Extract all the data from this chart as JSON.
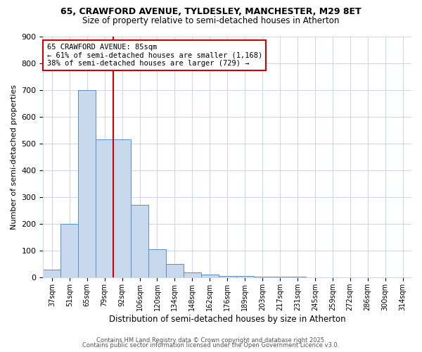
{
  "title1": "65, CRAWFORD AVENUE, TYLDESLEY, MANCHESTER, M29 8ET",
  "title2": "Size of property relative to semi-detached houses in Atherton",
  "xlabel": "Distribution of semi-detached houses by size in Atherton",
  "ylabel": "Number of semi-detached properties",
  "categories": [
    "37sqm",
    "51sqm",
    "65sqm",
    "79sqm",
    "92sqm",
    "106sqm",
    "120sqm",
    "134sqm",
    "148sqm",
    "162sqm",
    "176sqm",
    "189sqm",
    "203sqm",
    "217sqm",
    "231sqm",
    "245sqm",
    "259sqm",
    "272sqm",
    "286sqm",
    "300sqm",
    "314sqm"
  ],
  "values": [
    30,
    200,
    700,
    515,
    515,
    270,
    105,
    50,
    20,
    10,
    7,
    5,
    3,
    3,
    3,
    2,
    0,
    0,
    0,
    0,
    0
  ],
  "bar_color": "#c8d9ee",
  "bar_edge_color": "#5a8fc0",
  "vline_color": "#cc0000",
  "annotation_line1": "65 CRAWFORD AVENUE: 85sqm",
  "annotation_line2": "← 61% of semi-detached houses are smaller (1,168)",
  "annotation_line3": "38% of semi-detached houses are larger (729) →",
  "ylim": [
    0,
    900
  ],
  "yticks": [
    0,
    100,
    200,
    300,
    400,
    500,
    600,
    700,
    800,
    900
  ],
  "footer1": "Contains HM Land Registry data © Crown copyright and database right 2025.",
  "footer2": "Contains public sector information licensed under the Open Government Licence v3.0.",
  "background_color": "#ffffff",
  "grid_color": "#d0d8e8",
  "title_fontsize": 9,
  "subtitle_fontsize": 8.5
}
